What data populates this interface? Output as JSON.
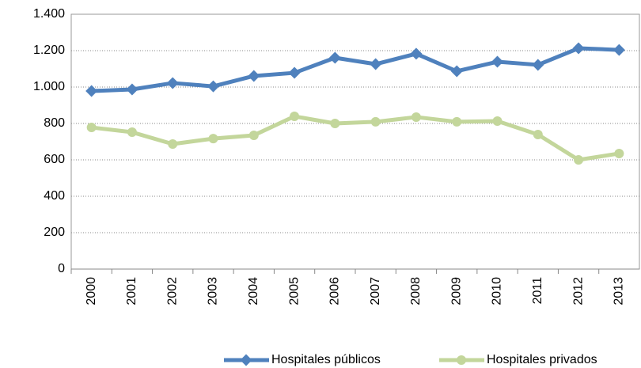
{
  "chart_data": {
    "type": "line",
    "categories": [
      "2000",
      "2001",
      "2002",
      "2003",
      "2004",
      "2005",
      "2006",
      "2007",
      "2008",
      "2009",
      "2010",
      "2011",
      "2012",
      "2013"
    ],
    "series": [
      {
        "name": "Hospitales públicos",
        "color": "#4f81bd",
        "marker": "diamond",
        "values": [
          978,
          987,
          1022,
          1004,
          1061,
          1078,
          1161,
          1126,
          1183,
          1087,
          1139,
          1122,
          1213,
          1204
        ]
      },
      {
        "name": "Hospitales privados",
        "color": "#c3d69b",
        "marker": "circle",
        "values": [
          778,
          752,
          687,
          717,
          735,
          839,
          800,
          809,
          835,
          809,
          813,
          739,
          600,
          635
        ]
      }
    ],
    "ylim": [
      0,
      1400
    ],
    "yticks": [
      0,
      200,
      400,
      600,
      800,
      {
        "value": 1000,
        "label": "1.000"
      },
      {
        "value": 1200,
        "label": "1.200"
      },
      {
        "value": 1400,
        "label": "1.400"
      }
    ],
    "grid": true,
    "legend": "bottom"
  }
}
